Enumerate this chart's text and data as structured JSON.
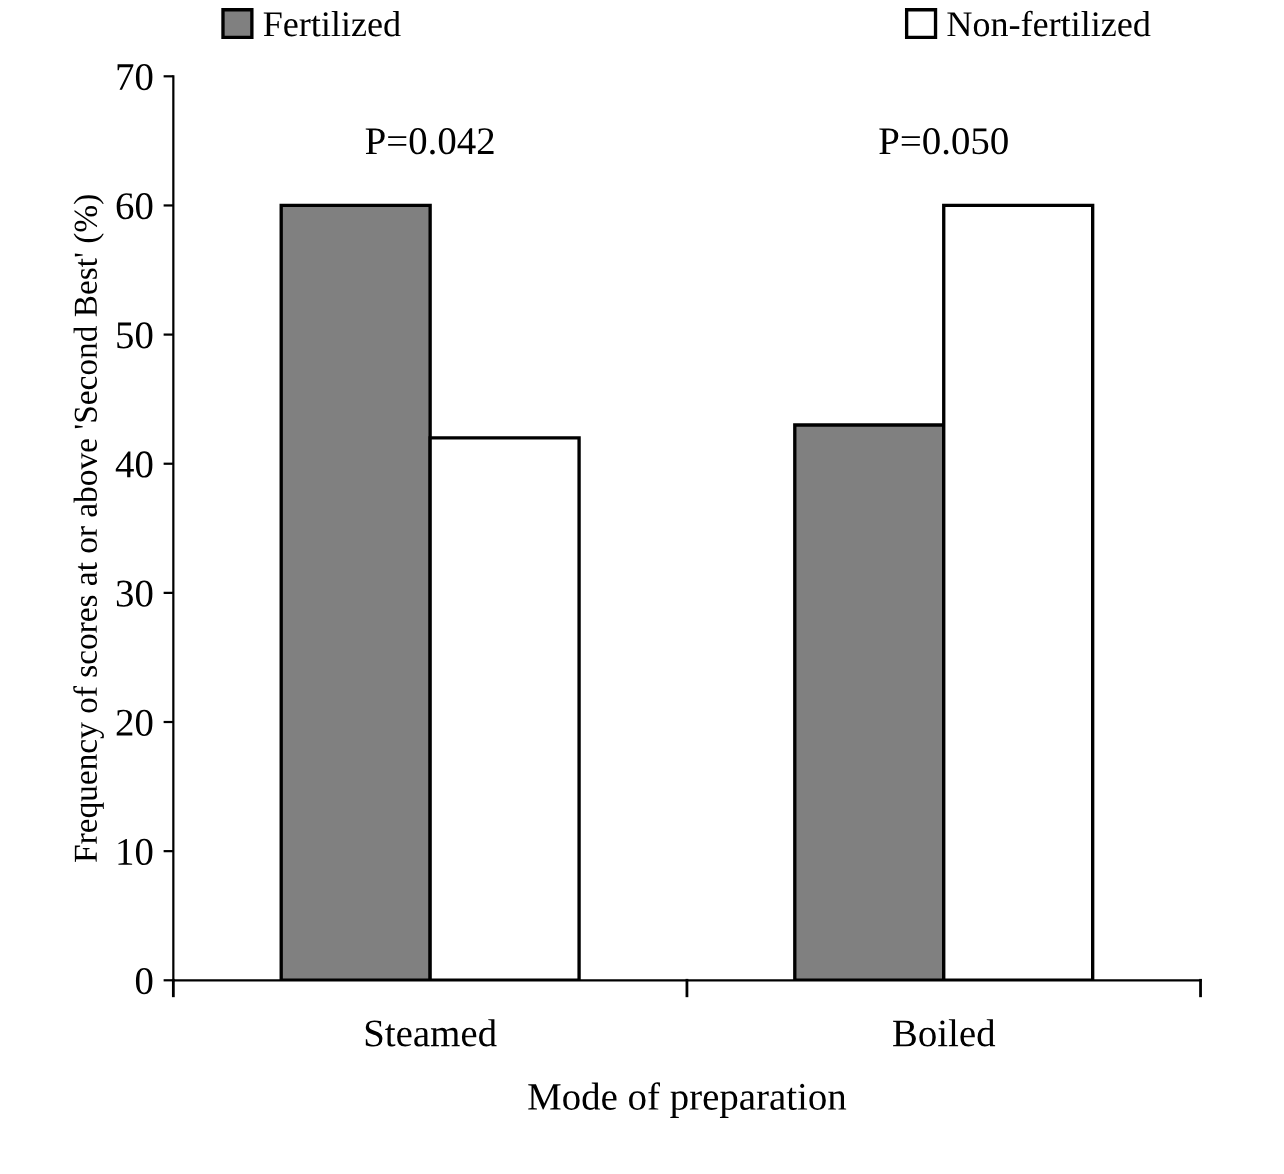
{
  "chart_data": {
    "type": "bar",
    "xlabel": "Mode of preparation",
    "ylabel": "Frequency of scores at or above 'Second Best' (%)",
    "categories": [
      "Steamed",
      "Boiled"
    ],
    "series": [
      {
        "name": "Fertilized",
        "color": "#808080",
        "values": [
          60,
          43
        ]
      },
      {
        "name": "Non-fertilized",
        "color": "#ffffff",
        "values": [
          42,
          60
        ]
      }
    ],
    "ylim": [
      0,
      70
    ],
    "yticks": [
      0,
      10,
      20,
      30,
      40,
      50,
      60,
      70
    ],
    "grid": false,
    "legend": "top",
    "annotations": [
      "P=0.042",
      "P=0.050"
    ]
  }
}
